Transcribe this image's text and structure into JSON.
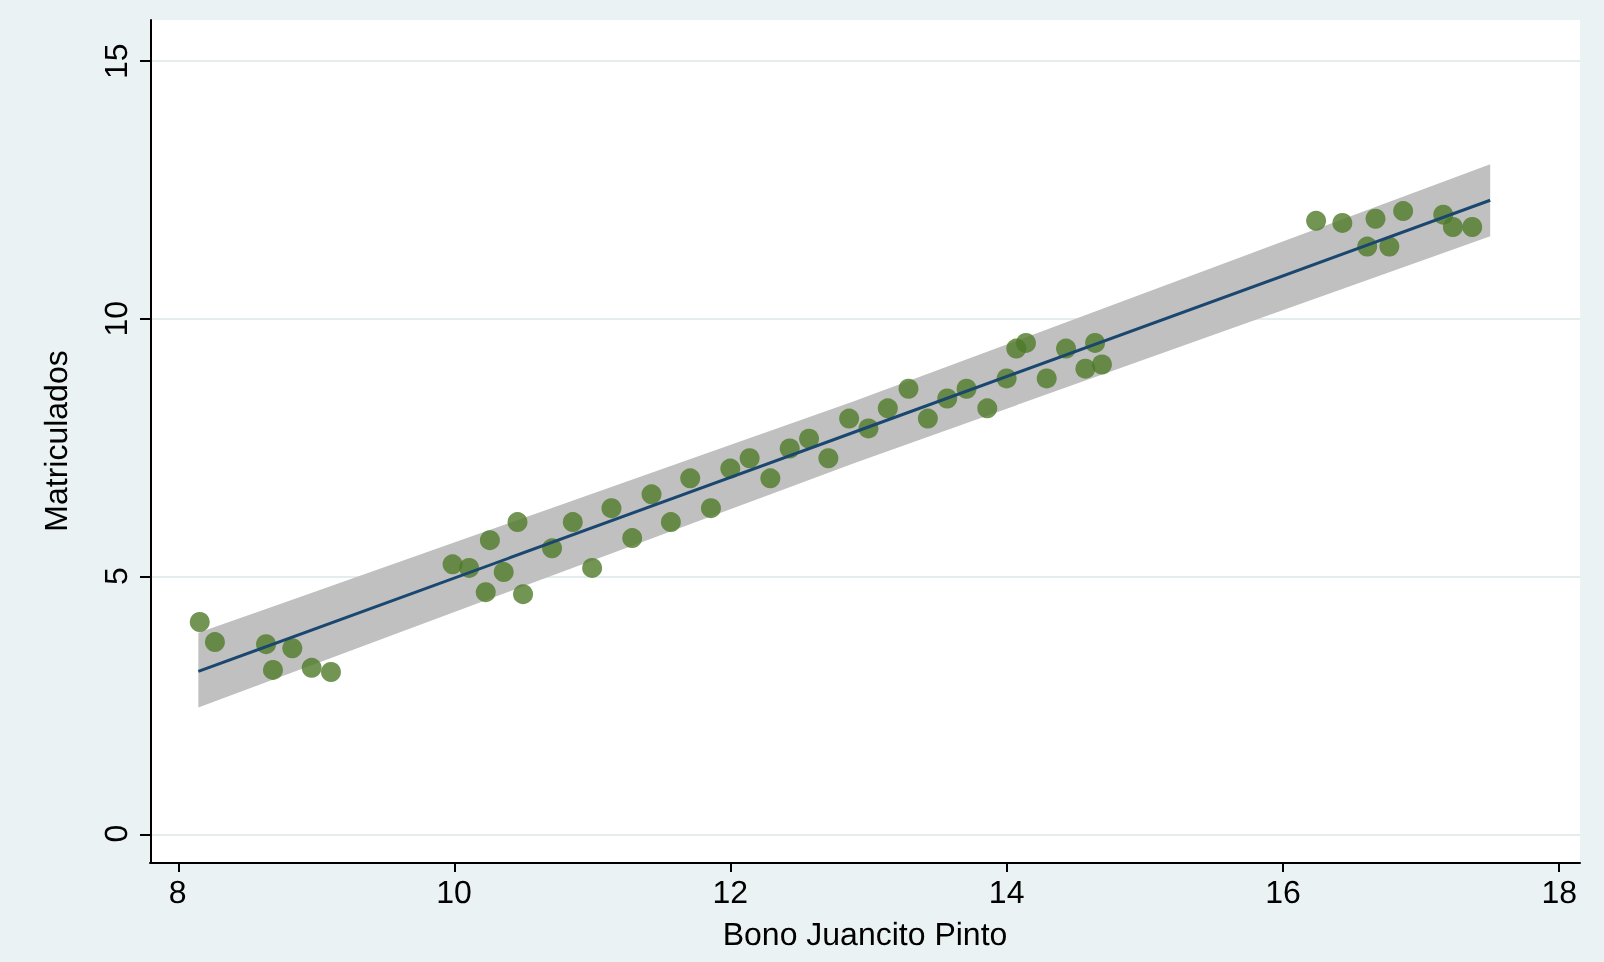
{
  "chart_data": {
    "type": "scatter",
    "xlabel": "Bono Juancito Pinto",
    "ylabel": "Matriculados",
    "xlim": [
      7.8,
      18.15
    ],
    "ylim": [
      -0.55,
      15.8
    ],
    "xticks": [
      8,
      10,
      12,
      14,
      16,
      18
    ],
    "yticks": [
      0,
      5,
      10,
      15
    ],
    "grid": "y",
    "marker": "circle",
    "series": [
      {
        "color": "#4f7a28",
        "x": [
          8.16,
          8.27,
          8.64,
          8.69,
          8.83,
          8.97,
          9.11,
          9.99,
          10.11,
          10.26,
          10.23,
          10.46,
          10.5,
          10.36,
          10.71,
          10.86,
          11,
          11.14,
          11.29,
          11.43,
          11.57,
          11.71,
          11.86,
          12,
          12.14,
          12.29,
          12.43,
          12.57,
          12.71,
          12.86,
          13,
          13.14,
          13.29,
          13.43,
          13.57,
          13.71,
          13.86,
          14,
          14.07,
          14.14,
          14.29,
          14.43,
          14.57,
          14.69,
          14.64,
          16.24,
          16.43,
          16.61,
          16.67,
          16.77,
          16.87,
          17.16,
          17.23,
          17.37
        ],
        "values": [
          4.11,
          3.72,
          3.68,
          3.18,
          3.6,
          3.22,
          3.14,
          5.23,
          5.16,
          5.7,
          4.69,
          6.05,
          4.65,
          5.08,
          5.54,
          6.05,
          5.16,
          6.32,
          5.74,
          6.59,
          6.05,
          6.9,
          6.32,
          7.09,
          7.29,
          6.9,
          7.48,
          7.67,
          7.29,
          8.06,
          7.87,
          8.26,
          8.64,
          8.06,
          8.45,
          8.64,
          8.26,
          8.84,
          9.42,
          9.53,
          8.84,
          9.42,
          9.03,
          9.11,
          9.53,
          11.9,
          11.86,
          11.4,
          11.94,
          11.4,
          12.09,
          12.02,
          11.78,
          11.78
        ]
      },
      {
        "type": "line",
        "color": "#1a476f",
        "x": [
          8.15,
          12.9,
          17.5
        ],
        "values": [
          3.15,
          7.8,
          12.3
        ],
        "lower": [
          2.45,
          7.2,
          11.6
        ],
        "upper": [
          3.9,
          8.4,
          13.0
        ],
        "marker": "none",
        "line_style": "solid"
      }
    ]
  }
}
